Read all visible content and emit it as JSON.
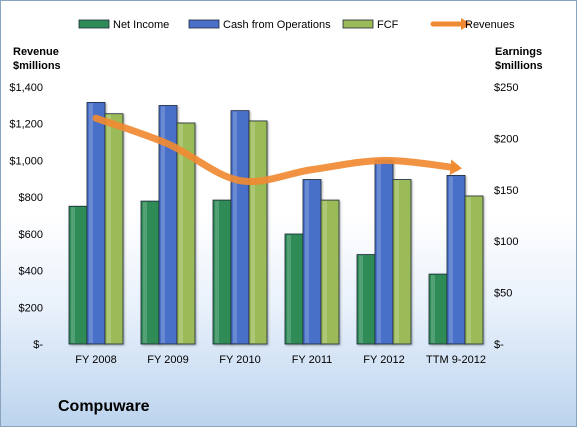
{
  "chart_data": {
    "type": "bar",
    "categories": [
      "FY 2008",
      "FY 2009",
      "FY 2010",
      "FY 2011",
      "FY 2012",
      "TTM 9-2012"
    ],
    "series": [
      {
        "name": "Net Income",
        "axis": "right",
        "color": "#2e8b57",
        "values": [
          134,
          139,
          140,
          107,
          87,
          68
        ]
      },
      {
        "name": "Cash from Operations",
        "axis": "right",
        "color": "#4a6fc8",
        "values": [
          235,
          232,
          227,
          160,
          179,
          164
        ]
      },
      {
        "name": "FCF",
        "axis": "right",
        "color": "#9bbb59",
        "values": [
          224,
          215,
          217,
          140,
          160,
          144
        ]
      },
      {
        "name": "Revenues",
        "axis": "left",
        "type": "line",
        "color": "#f08a32",
        "values": [
          1230,
          1090,
          890,
          950,
          1000,
          960
        ]
      }
    ],
    "left_axis": {
      "title": [
        "Revenue",
        "$millions"
      ],
      "ylim": [
        0,
        1400
      ],
      "ticks": [
        0,
        200,
        400,
        600,
        800,
        1000,
        1200,
        1400
      ],
      "tick_labels": [
        "$-",
        "$200",
        "$400",
        "$600",
        "$800",
        "$1,000",
        "$1,200",
        "$1,400"
      ]
    },
    "right_axis": {
      "title": [
        "Earnings",
        "$millions"
      ],
      "ylim": [
        0,
        250
      ],
      "ticks": [
        0,
        50,
        100,
        150,
        200,
        250
      ],
      "tick_labels": [
        "$-",
        "$50",
        "$100",
        "$150",
        "$200",
        "$250"
      ]
    },
    "legend_position": "top",
    "grid": false,
    "annotation": "Compuware"
  }
}
